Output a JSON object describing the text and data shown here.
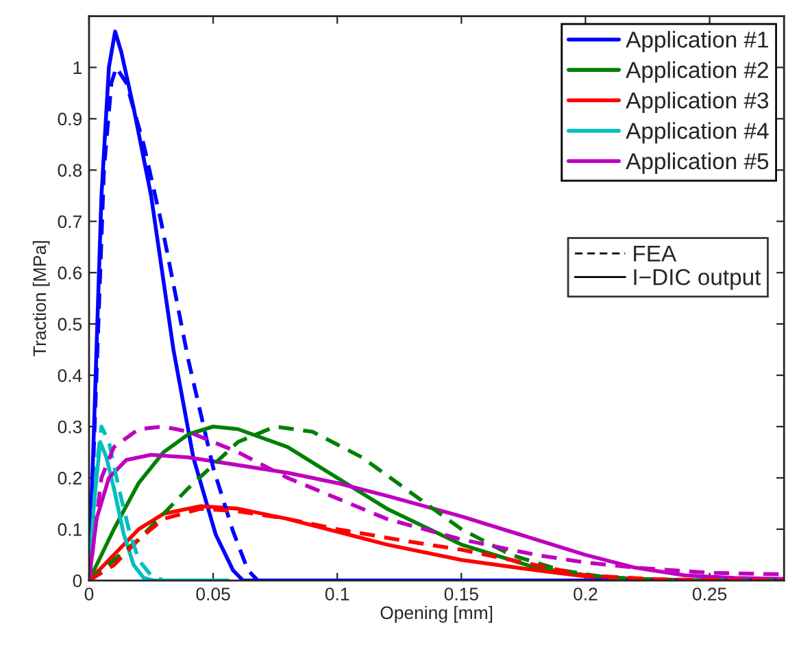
{
  "chart_data": {
    "type": "line",
    "xlabel": "Opening [mm]",
    "ylabel": "Traction [MPa]",
    "xlim": [
      0,
      0.28
    ],
    "ylim": [
      0,
      1.1
    ],
    "xticks": [
      0,
      0.05,
      0.1,
      0.15,
      0.2,
      0.25
    ],
    "yticks": [
      0,
      0.1,
      0.2,
      0.3,
      0.4,
      0.5,
      0.6,
      0.7,
      0.8,
      0.9,
      1
    ],
    "grid": false,
    "legend": "top right",
    "marker": "none",
    "annotations": [
      "FEA",
      "I−DIC output"
    ],
    "series": [
      {
        "name": "Application #1",
        "color": "#0000ff",
        "line_style": "solid",
        "x": [
          0,
          0.002,
          0.005,
          0.008,
          0.0105,
          0.013,
          0.018,
          0.025,
          0.034,
          0.042,
          0.051,
          0.058,
          0.062,
          0.28
        ],
        "values": [
          0,
          0.3,
          0.75,
          1.0,
          1.07,
          1.03,
          0.92,
          0.75,
          0.45,
          0.24,
          0.09,
          0.02,
          0,
          0
        ]
      },
      {
        "name": "Application #2",
        "color": "#008000",
        "line_style": "solid",
        "x": [
          0,
          0.01,
          0.02,
          0.03,
          0.04,
          0.05,
          0.06,
          0.08,
          0.1,
          0.12,
          0.15,
          0.18,
          0.2,
          0.22,
          0.25,
          0.28
        ],
        "values": [
          0,
          0.1,
          0.19,
          0.25,
          0.285,
          0.3,
          0.295,
          0.26,
          0.2,
          0.14,
          0.07,
          0.025,
          0.01,
          0.003,
          0,
          0
        ]
      },
      {
        "name": "Application #3",
        "color": "#ff0000",
        "line_style": "solid",
        "x": [
          0,
          0.01,
          0.02,
          0.03,
          0.045,
          0.06,
          0.08,
          0.1,
          0.12,
          0.15,
          0.18,
          0.2,
          0.22,
          0.25,
          0.28
        ],
        "values": [
          0,
          0.05,
          0.1,
          0.13,
          0.145,
          0.14,
          0.12,
          0.095,
          0.07,
          0.04,
          0.02,
          0.008,
          0.003,
          0,
          0
        ]
      },
      {
        "name": "Application #4",
        "color": "#00bfbf",
        "line_style": "solid",
        "x": [
          0,
          0.002,
          0.0045,
          0.007,
          0.01,
          0.014,
          0.018,
          0.022,
          0.026,
          0.056
        ],
        "values": [
          0,
          0.15,
          0.27,
          0.24,
          0.18,
          0.09,
          0.03,
          0.005,
          0,
          0
        ]
      },
      {
        "name": "Application #5",
        "color": "#bf00bf",
        "line_style": "solid",
        "x": [
          0,
          0.003,
          0.008,
          0.015,
          0.025,
          0.04,
          0.06,
          0.08,
          0.1,
          0.12,
          0.15,
          0.18,
          0.2,
          0.22,
          0.24,
          0.26,
          0.28
        ],
        "values": [
          0,
          0.12,
          0.2,
          0.235,
          0.245,
          0.24,
          0.225,
          0.21,
          0.19,
          0.165,
          0.125,
          0.08,
          0.05,
          0.025,
          0.01,
          0.005,
          0.003
        ]
      },
      {
        "color": "#0000ff",
        "line_style": "dashed",
        "x": [
          0,
          0.003,
          0.006,
          0.009,
          0.011,
          0.015,
          0.022,
          0.029,
          0.04,
          0.05,
          0.058,
          0.064,
          0.068,
          0.28
        ],
        "values": [
          0,
          0.4,
          0.8,
          0.97,
          1.0,
          0.97,
          0.85,
          0.7,
          0.43,
          0.22,
          0.096,
          0.02,
          0,
          0
        ]
      },
      {
        "color": "#008000",
        "line_style": "dashed",
        "x": [
          0,
          0.02,
          0.04,
          0.06,
          0.075,
          0.09,
          0.11,
          0.13,
          0.15,
          0.17,
          0.19,
          0.21,
          0.24,
          0.28
        ],
        "values": [
          0,
          0.08,
          0.18,
          0.27,
          0.3,
          0.29,
          0.24,
          0.17,
          0.1,
          0.05,
          0.02,
          0.005,
          0,
          0
        ]
      },
      {
        "color": "#ff0000",
        "line_style": "dashed",
        "x": [
          0,
          0.01,
          0.02,
          0.03,
          0.045,
          0.06,
          0.08,
          0.1,
          0.13,
          0.15,
          0.18,
          0.2,
          0.23,
          0.28
        ],
        "values": [
          0,
          0.03,
          0.08,
          0.12,
          0.14,
          0.135,
          0.12,
          0.1,
          0.075,
          0.06,
          0.03,
          0.01,
          0.002,
          0
        ]
      },
      {
        "color": "#00bfbf",
        "line_style": "dashed",
        "x": [
          0,
          0.003,
          0.005,
          0.008,
          0.012,
          0.016,
          0.02,
          0.025,
          0.03
        ],
        "values": [
          0,
          0.22,
          0.3,
          0.27,
          0.18,
          0.1,
          0.04,
          0.01,
          0
        ]
      },
      {
        "color": "#bf00bf",
        "line_style": "dashed",
        "x": [
          0,
          0.005,
          0.01,
          0.02,
          0.03,
          0.04,
          0.06,
          0.08,
          0.1,
          0.12,
          0.15,
          0.18,
          0.2,
          0.22,
          0.25,
          0.28
        ],
        "values": [
          0,
          0.2,
          0.26,
          0.295,
          0.3,
          0.29,
          0.25,
          0.2,
          0.16,
          0.12,
          0.08,
          0.05,
          0.035,
          0.025,
          0.015,
          0.012
        ]
      }
    ]
  }
}
